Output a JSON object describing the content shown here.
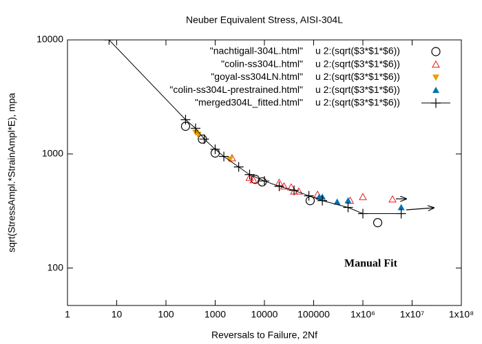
{
  "chart_data": {
    "type": "scatter",
    "title": "Neuber Equivalent Stress, AISI-304L",
    "x_label": "Reversals to Failure, 2Nf",
    "y_label": "sqrt(StressAmpl.*StrainAmpl*E), mpa",
    "annotation": "Manual Fit",
    "log_x": true,
    "log_y": true,
    "xlim": [
      1,
      100000000
    ],
    "ylim": [
      47,
      10000
    ],
    "xticks": [
      1,
      10,
      100,
      1000,
      10000,
      100000,
      {
        "value": 1000000,
        "label": "1x10⁶"
      },
      {
        "value": 10000000,
        "label": "1x10⁷"
      },
      {
        "value": 100000000,
        "label": "1x10⁸"
      }
    ],
    "yticks": [
      100,
      1000,
      10000
    ],
    "legend": "top-right",
    "series": [
      {
        "name": "\"nachtigall-304L.html\"",
        "expression": "u 2:(sqrt($3*$1*$6))",
        "marker": "circle",
        "color": "#000000",
        "x": [
          250,
          550,
          1000,
          6500,
          9000,
          85000,
          2000000
        ],
        "values": [
          1750,
          1350,
          1020,
          600,
          570,
          390,
          250
        ]
      },
      {
        "name": "\"colin-ss304L.html\"",
        "expression": "u 2:(sqrt($3*$1*$6))",
        "marker": "triangle",
        "color": "#e41a1c",
        "x": [
          2200,
          5000,
          6000,
          20000,
          25000,
          35000,
          40000,
          50000,
          120000,
          550000,
          1000000,
          4000000
        ],
        "values": [
          920,
          620,
          590,
          560,
          520,
          510,
          470,
          470,
          440,
          390,
          420,
          400
        ]
      },
      {
        "name": "\"goyal-ss304LN.html\"",
        "expression": "u 2:(sqrt($3*$1*$6))",
        "marker": "triangle-down-filled",
        "color": "#e69f00",
        "x": [
          400,
          450,
          2000
        ],
        "values": [
          1550,
          1480,
          900
        ]
      },
      {
        "name": "\"colin-ss304L-prestrained.html\"",
        "expression": "u 2:(sqrt($3*$1*$6))",
        "marker": "triangle-filled",
        "color": "#0072b2",
        "x": [
          130000,
          150000,
          300000,
          500000,
          6000000
        ],
        "values": [
          420,
          420,
          380,
          390,
          340
        ]
      },
      {
        "name": "\"merged304L_fitted.html\"",
        "expression": "u 2:(sqrt($3*$1*$6))",
        "marker": "plus",
        "line": true,
        "color": "#000000",
        "x": [
          7,
          250,
          400,
          600,
          1000,
          1500,
          3000,
          5000,
          10000,
          20000,
          40000,
          80000,
          150000,
          500000,
          1000000,
          6000000
        ],
        "values": [
          10000,
          2000,
          1680,
          1350,
          1100,
          950,
          770,
          660,
          580,
          520,
          480,
          430,
          390,
          340,
          300,
          300
        ]
      }
    ]
  }
}
